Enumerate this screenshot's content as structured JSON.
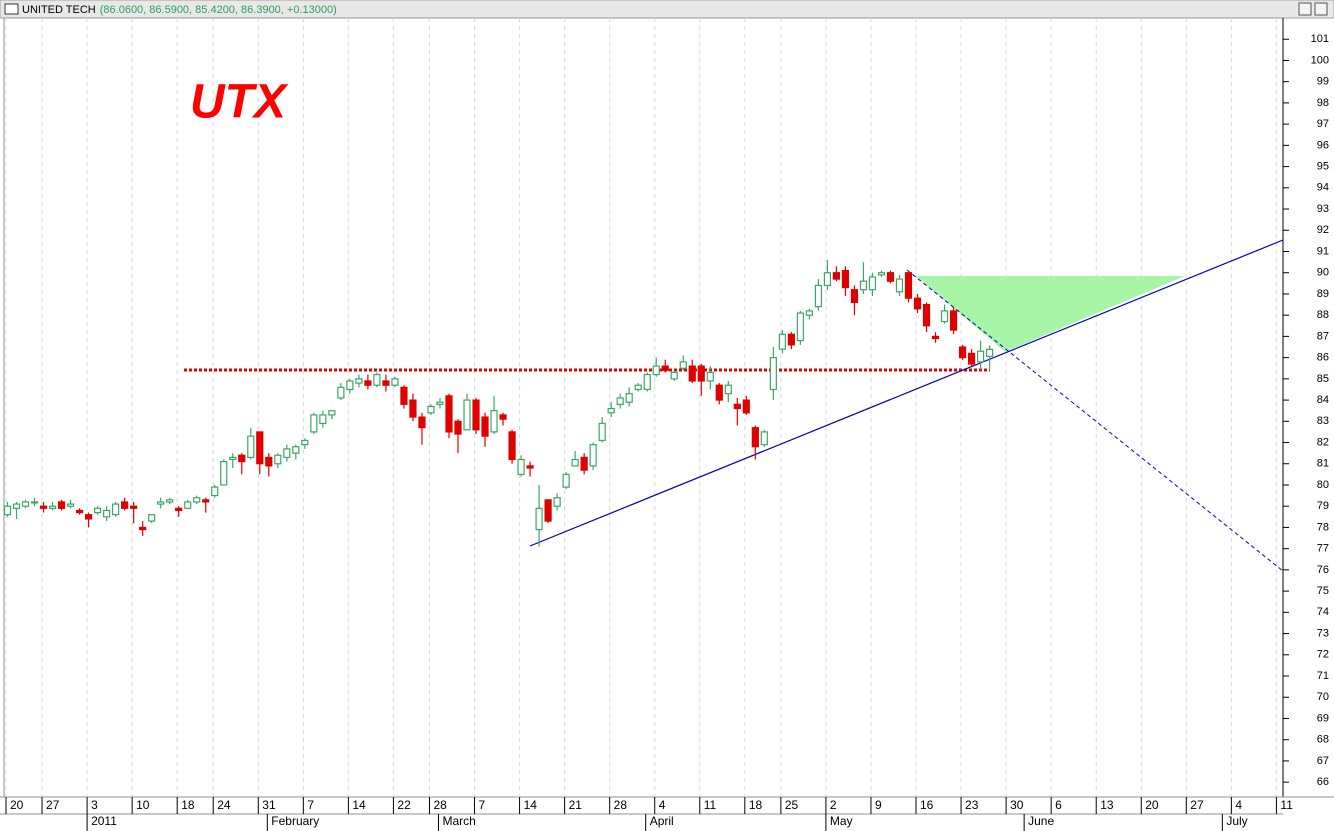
{
  "chart_data": {
    "type": "candlestick",
    "title": "UNITED TECH",
    "subtitle": "(86.0600, 86.5900, 85.4200, 86.3900, +0.13000)",
    "annotation": "UTX",
    "up_color": "#3aa865",
    "down_color": "#e00000",
    "grid": true,
    "categories": [
      "20",
      null,
      null,
      null,
      "27",
      null,
      null,
      null,
      null,
      "3",
      null,
      null,
      null,
      null,
      "10",
      null,
      null,
      null,
      null,
      "18",
      null,
      null,
      null,
      "24",
      null,
      null,
      null,
      null,
      "31",
      null,
      null,
      null,
      null,
      "7",
      null,
      null,
      null,
      null,
      "14",
      null,
      null,
      null,
      null,
      "22",
      null,
      null,
      null,
      "28",
      null,
      null,
      null,
      null,
      "7",
      null,
      null,
      null,
      null,
      "14",
      null,
      null,
      null,
      null,
      "21",
      null,
      null,
      null,
      null,
      "28",
      null,
      null,
      null,
      null,
      "4",
      null,
      null,
      null,
      null,
      "11",
      null,
      null,
      null,
      null,
      "18",
      null,
      null,
      null,
      "25",
      null,
      null,
      null,
      null,
      "2",
      null,
      null,
      null,
      null,
      "9",
      null,
      null,
      null,
      null,
      "16",
      null,
      null,
      null,
      null,
      "23",
      null,
      null,
      null,
      null,
      "30",
      null,
      null,
      null,
      null,
      "6",
      null,
      null,
      null,
      null,
      "13",
      null,
      null,
      null,
      null,
      "20",
      null,
      null,
      null,
      null,
      "27",
      null,
      null,
      null,
      null,
      "4",
      null,
      null,
      null,
      null,
      "11"
    ],
    "months": [
      null,
      null,
      null,
      null,
      null,
      null,
      null,
      null,
      null,
      "2011",
      null,
      null,
      null,
      null,
      null,
      null,
      null,
      null,
      null,
      null,
      null,
      null,
      null,
      null,
      null,
      null,
      null,
      null,
      null,
      "February",
      null,
      null,
      null,
      null,
      null,
      null,
      null,
      null,
      null,
      null,
      null,
      null,
      null,
      null,
      null,
      null,
      null,
      null,
      "March",
      null,
      null,
      null,
      null,
      null,
      null,
      null,
      null,
      null,
      null,
      null,
      null,
      null,
      null,
      null,
      null,
      null,
      null,
      null,
      null,
      null,
      null,
      "April",
      null,
      null,
      null,
      null,
      null,
      null,
      null,
      null,
      null,
      null,
      null,
      null,
      null,
      null,
      null,
      null,
      null,
      null,
      null,
      "May",
      null,
      null,
      null,
      null,
      null,
      null,
      null,
      null,
      null,
      null,
      null,
      null,
      null,
      null,
      null,
      null,
      null,
      null,
      null,
      null,
      null,
      "June",
      null,
      null,
      null,
      null,
      null,
      null,
      null,
      null,
      null,
      null,
      null,
      null,
      null,
      null,
      null,
      null,
      null,
      null,
      null,
      null,
      null,
      "July",
      null,
      null,
      null,
      null,
      null,
      null
    ],
    "open": [
      78.6,
      78.9,
      79.0,
      79.2,
      79.0,
      78.9,
      79.2,
      79.0,
      78.8,
      78.6,
      78.7,
      78.5,
      78.6,
      79.2,
      79.0,
      78.0,
      78.3,
      79.1,
      79.2,
      78.9,
      78.9,
      79.2,
      79.3,
      79.5,
      80.0,
      81.2,
      81.4,
      81.3,
      82.5,
      81.3,
      81.0,
      81.3,
      81.5,
      81.9,
      82.5,
      82.9,
      83.3,
      84.1,
      84.5,
      84.8,
      84.9,
      84.7,
      84.9,
      84.7,
      84.6,
      84.0,
      83.2,
      83.4,
      83.8,
      84.2,
      83.0,
      82.6,
      84.0,
      83.2,
      82.5,
      83.3,
      82.5,
      80.5,
      80.9,
      77.9,
      79.3,
      79.0,
      79.9,
      80.9,
      81.3,
      80.9,
      82.1,
      83.4,
      83.8,
      83.9,
      84.5,
      84.5,
      85.2,
      85.6,
      85.0,
      85.5,
      85.6,
      85.6,
      84.9,
      84.7,
      84.3,
      83.8,
      84.0,
      82.7,
      81.9,
      84.5,
      86.4,
      87.1,
      86.8,
      88.0,
      88.4,
      89.4,
      90.0,
      90.1,
      89.2,
      89.2,
      89.2,
      89.9,
      90.0,
      89.1,
      90.0,
      88.8,
      88.5,
      87.0,
      87.7,
      88.2,
      86.5,
      86.2,
      85.8,
      86.06,
      null,
      null,
      null,
      null,
      null,
      null,
      null,
      null,
      null,
      null,
      null,
      null,
      null,
      null,
      null,
      null,
      null,
      null,
      null,
      null,
      null,
      null,
      null,
      null,
      null,
      null,
      null,
      null,
      null,
      null,
      null,
      null
    ],
    "high": [
      79.2,
      79.2,
      79.3,
      79.4,
      79.2,
      79.2,
      79.3,
      79.3,
      78.9,
      78.7,
      79.0,
      79.0,
      79.2,
      79.4,
      79.2,
      78.3,
      78.6,
      79.4,
      79.4,
      79.0,
      79.3,
      79.5,
      79.4,
      80.0,
      81.2,
      81.5,
      81.5,
      82.7,
      82.5,
      81.5,
      81.5,
      81.9,
      81.9,
      82.2,
      83.4,
      83.5,
      83.5,
      84.8,
      85.0,
      85.2,
      85.2,
      85.3,
      85.2,
      85.1,
      84.7,
      84.3,
      83.4,
      83.8,
      84.1,
      84.3,
      83.1,
      84.3,
      84.1,
      83.4,
      84.2,
      83.4,
      82.6,
      81.4,
      81.1,
      80.0,
      79.3,
      79.6,
      80.6,
      81.6,
      81.5,
      82.0,
      83.2,
      83.9,
      84.3,
      84.6,
      84.8,
      85.3,
      86.0,
      85.9,
      85.4,
      86.1,
      85.9,
      85.7,
      85.6,
      84.8,
      84.9,
      84.1,
      84.2,
      82.8,
      82.6,
      86.5,
      87.3,
      87.2,
      88.2,
      88.3,
      89.7,
      90.6,
      90.3,
      90.3,
      89.4,
      90.5,
      90.0,
      90.1,
      90.1,
      89.9,
      90.0,
      89.0,
      88.6,
      87.2,
      88.5,
      88.4,
      86.6,
      86.4,
      86.8,
      86.59,
      null,
      null,
      null,
      null,
      null,
      null,
      null,
      null,
      null,
      null,
      null,
      null,
      null,
      null,
      null,
      null,
      null,
      null,
      null,
      null,
      null,
      null,
      null,
      null,
      null,
      null,
      null,
      null,
      null,
      null,
      null,
      null
    ],
    "low": [
      78.5,
      78.4,
      78.9,
      79.0,
      78.7,
      78.8,
      78.8,
      78.9,
      78.6,
      78.0,
      78.6,
      78.3,
      78.5,
      78.8,
      78.2,
      77.6,
      78.2,
      78.9,
      79.1,
      78.5,
      78.9,
      79.1,
      78.7,
      79.4,
      80.0,
      80.8,
      80.5,
      81.2,
      80.5,
      80.4,
      80.8,
      81.1,
      81.2,
      81.7,
      82.4,
      82.7,
      83.1,
      84.0,
      84.3,
      84.6,
      84.5,
      84.6,
      84.4,
      84.6,
      83.6,
      83.0,
      81.9,
      83.3,
      83.6,
      82.2,
      81.5,
      82.6,
      82.4,
      81.8,
      82.4,
      82.8,
      81.0,
      80.4,
      80.4,
      77.1,
      78.2,
      78.8,
      79.8,
      80.9,
      80.5,
      80.7,
      82.0,
      83.2,
      83.6,
      83.7,
      84.4,
      84.4,
      85.1,
      85.3,
      84.9,
      85.4,
      84.8,
      84.2,
      84.5,
      83.8,
      83.9,
      82.8,
      83.3,
      81.2,
      81.8,
      84.0,
      86.2,
      86.4,
      86.6,
      87.8,
      88.2,
      89.2,
      89.6,
      88.9,
      88.0,
      89.0,
      88.9,
      89.8,
      89.5,
      88.9,
      88.6,
      88.1,
      87.2,
      86.7,
      87.6,
      87.1,
      85.9,
      85.6,
      85.4,
      85.42,
      null,
      null,
      null,
      null,
      null,
      null,
      null,
      null,
      null,
      null,
      null,
      null,
      null,
      null,
      null,
      null,
      null,
      null,
      null,
      null,
      null,
      null,
      null,
      null,
      null,
      null,
      null,
      null,
      null,
      null,
      null,
      null
    ],
    "close": [
      79.0,
      79.1,
      79.2,
      79.2,
      78.9,
      79.0,
      78.9,
      79.1,
      78.7,
      78.4,
      78.9,
      78.8,
      79.1,
      78.9,
      78.9,
      77.9,
      78.6,
      79.2,
      79.3,
      78.8,
      79.2,
      79.4,
      79.2,
      79.9,
      81.1,
      81.3,
      81.1,
      82.3,
      81.0,
      80.9,
      81.4,
      81.7,
      81.8,
      82.1,
      83.3,
      83.3,
      83.5,
      84.6,
      84.9,
      85.0,
      84.7,
      85.2,
      84.7,
      85.0,
      83.8,
      83.2,
      82.7,
      83.7,
      83.9,
      82.5,
      82.4,
      84.0,
      82.6,
      82.3,
      83.5,
      83.1,
      81.2,
      81.2,
      80.8,
      78.9,
      78.3,
      79.4,
      80.5,
      81.2,
      80.7,
      81.9,
      82.9,
      83.6,
      84.1,
      84.3,
      84.7,
      85.2,
      85.6,
      85.4,
      85.3,
      85.8,
      84.9,
      84.9,
      85.3,
      84.0,
      84.7,
      83.6,
      83.4,
      81.8,
      82.5,
      86.0,
      87.1,
      86.6,
      88.1,
      88.2,
      89.4,
      90.0,
      89.7,
      89.3,
      88.6,
      89.6,
      89.8,
      90.0,
      89.6,
      89.7,
      88.8,
      88.3,
      87.5,
      86.9,
      88.2,
      87.3,
      86.0,
      85.7,
      86.3,
      86.39,
      null,
      null,
      null,
      null,
      null,
      null,
      null,
      null,
      null,
      null,
      null,
      null,
      null,
      null,
      null,
      null,
      null,
      null,
      null,
      null,
      null,
      null,
      null,
      null,
      null,
      null,
      null,
      null,
      null,
      null,
      null,
      null
    ],
    "ylim": [
      65.3,
      102
    ],
    "yticks": [
      66,
      67,
      68,
      69,
      70,
      71,
      72,
      73,
      74,
      75,
      76,
      77,
      78,
      79,
      80,
      81,
      82,
      83,
      84,
      85,
      86,
      87,
      88,
      89,
      90,
      91,
      92,
      93,
      94,
      95,
      96,
      97,
      98,
      99,
      100,
      101
    ]
  }
}
